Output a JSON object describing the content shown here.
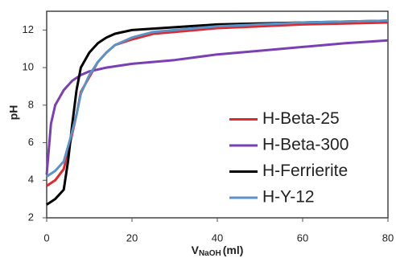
{
  "chart_data": {
    "type": "line",
    "x_label": "V",
    "x_label_sub": "NaOH",
    "x_label_unit": "(ml)",
    "y_label": "pH",
    "xlim": [
      0,
      80
    ],
    "xticks": [
      0,
      20,
      40,
      60,
      80
    ],
    "ylim": [
      2,
      13
    ],
    "yticks": [
      2,
      4,
      6,
      8,
      10,
      12
    ],
    "legend": "lower-right",
    "series": [
      {
        "name": "H-Beta-25",
        "color": "#e0282e",
        "x": [
          0,
          2,
          4,
          5.5,
          7,
          8,
          10,
          12,
          14,
          16,
          20,
          25,
          30,
          40,
          50,
          60,
          70,
          80
        ],
        "values": [
          3.7,
          4.0,
          4.6,
          6.0,
          7.5,
          8.7,
          9.5,
          10.3,
          10.8,
          11.2,
          11.5,
          11.8,
          11.9,
          12.1,
          12.2,
          12.3,
          12.35,
          12.4
        ]
      },
      {
        "name": "H-Beta-300",
        "color": "#7b3fb5",
        "x": [
          0,
          1,
          2,
          4,
          6,
          8,
          10,
          14,
          20,
          30,
          40,
          50,
          60,
          70,
          80
        ],
        "values": [
          4.3,
          7.0,
          8.0,
          8.8,
          9.3,
          9.6,
          9.8,
          10.0,
          10.2,
          10.4,
          10.7,
          10.9,
          11.1,
          11.3,
          11.45
        ]
      },
      {
        "name": "H-Ferrierite",
        "color": "#000000",
        "x": [
          0,
          2,
          4,
          5,
          6,
          7,
          8,
          10,
          12,
          14,
          16,
          20,
          30,
          40,
          60,
          80
        ],
        "values": [
          2.7,
          3.0,
          3.5,
          5.0,
          7.0,
          8.8,
          10.0,
          10.8,
          11.3,
          11.6,
          11.8,
          12.0,
          12.15,
          12.3,
          12.4,
          12.5
        ]
      },
      {
        "name": "H-Y-12",
        "color": "#5b93c7",
        "x": [
          0,
          2,
          4,
          5.5,
          7,
          8,
          10,
          12,
          14,
          16,
          20,
          25,
          30,
          40,
          50,
          60,
          70,
          80
        ],
        "values": [
          4.2,
          4.5,
          5.0,
          6.2,
          7.5,
          8.6,
          9.6,
          10.3,
          10.8,
          11.2,
          11.6,
          11.9,
          12.0,
          12.2,
          12.3,
          12.4,
          12.45,
          12.5
        ]
      }
    ]
  }
}
